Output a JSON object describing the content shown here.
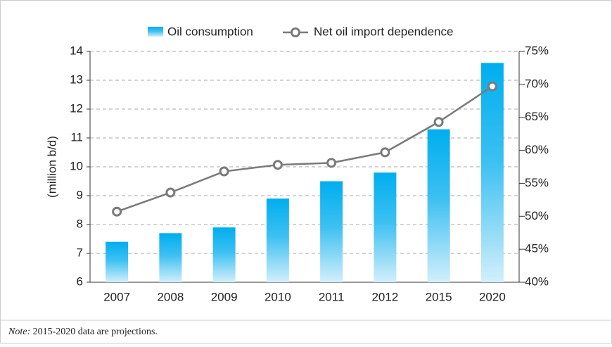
{
  "chart_data": {
    "type": "bar",
    "categories": [
      "2007",
      "2008",
      "2009",
      "2010",
      "2011",
      "2012",
      "2015",
      "2020"
    ],
    "series": [
      {
        "name": "Oil consumption",
        "color": "#00aeef",
        "values": [
          7.4,
          7.7,
          7.9,
          8.9,
          9.5,
          9.8,
          11.3,
          13.6
        ]
      },
      {
        "name": "Net oil import dependence",
        "color": "#7a7a7a",
        "axis": "y2",
        "type": "line",
        "values": [
          50.7,
          53.6,
          56.8,
          57.8,
          58.1,
          59.7,
          64.3,
          69.7
        ]
      }
    ],
    "y_label": "(million b/d)",
    "ylim": [
      6,
      14
    ],
    "yticks": [
      6,
      7,
      8,
      9,
      10,
      11,
      12,
      13,
      14
    ],
    "y2lim": [
      40,
      75
    ],
    "y2ticks": [
      {
        "value": 40,
        "label": "40%"
      },
      {
        "value": 45,
        "label": "45%"
      },
      {
        "value": 50,
        "label": "50%"
      },
      {
        "value": 55,
        "label": "55%"
      },
      {
        "value": 60,
        "label": "60%"
      },
      {
        "value": 65,
        "label": "65%"
      },
      {
        "value": 70,
        "label": "70%"
      },
      {
        "value": 75,
        "label": "75%"
      }
    ],
    "grid": true,
    "legend": "top",
    "note_label": "Note:",
    "note_text": "2015-2020 data are projections."
  }
}
